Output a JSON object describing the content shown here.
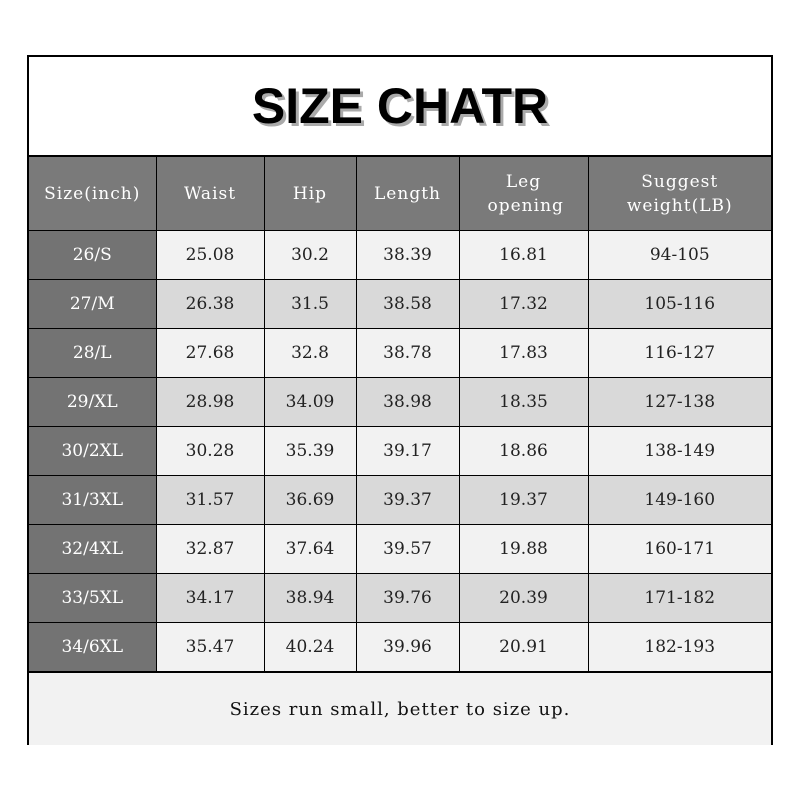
{
  "title": "SIZE CHATR",
  "headers": [
    "Size(inch)",
    "Waist",
    "Hip",
    "Length",
    "Leg opening",
    "Suggest weight(LB)"
  ],
  "rows": [
    [
      "26/S",
      "25.08",
      "30.2",
      "38.39",
      "16.81",
      "94-105"
    ],
    [
      "27/M",
      "26.38",
      "31.5",
      "38.58",
      "17.32",
      "105-116"
    ],
    [
      "28/L",
      "27.68",
      "32.8",
      "38.78",
      "17.83",
      "116-127"
    ],
    [
      "29/XL",
      "28.98",
      "34.09",
      "38.98",
      "18.35",
      "127-138"
    ],
    [
      "30/2XL",
      "30.28",
      "35.39",
      "39.17",
      "18.86",
      "138-149"
    ],
    [
      "31/3XL",
      "31.57",
      "36.69",
      "39.37",
      "19.37",
      "149-160"
    ],
    [
      "32/4XL",
      "32.87",
      "37.64",
      "39.57",
      "19.88",
      "160-171"
    ],
    [
      "33/5XL",
      "34.17",
      "38.94",
      "39.76",
      "20.39",
      "171-182"
    ],
    [
      "34/6XL",
      "35.47",
      "40.24",
      "39.96",
      "20.91",
      "182-193"
    ]
  ],
  "footer": "Sizes run small, better to size up.",
  "colors": {
    "header_bg": "#7a7a7a",
    "size_col_bg": "#737373",
    "row_light": "#f2f2f2",
    "row_dark": "#d9d9d9"
  }
}
